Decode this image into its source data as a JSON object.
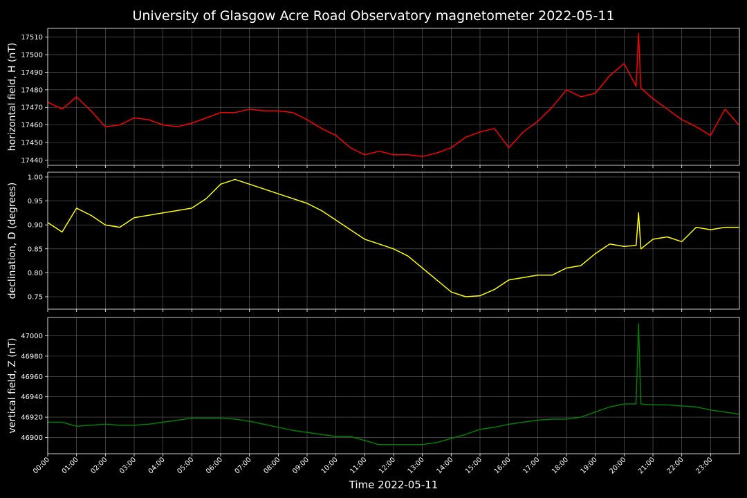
{
  "title": "University of Glasgow Acre Road Observatory magnetometer 2022-05-11",
  "chart_data": [
    {
      "type": "line",
      "ylabel": "horizontal field, H (nT)",
      "color": "#ff0000",
      "grid": true,
      "x": [
        "00:00",
        "00:30",
        "01:00",
        "01:30",
        "02:00",
        "02:30",
        "03:00",
        "03:30",
        "04:00",
        "04:30",
        "05:00",
        "05:30",
        "06:00",
        "06:30",
        "07:00",
        "07:30",
        "08:00",
        "08:30",
        "09:00",
        "09:30",
        "10:00",
        "10:30",
        "11:00",
        "11:30",
        "12:00",
        "12:30",
        "13:00",
        "13:30",
        "14:00",
        "14:30",
        "15:00",
        "15:30",
        "16:00",
        "16:30",
        "17:00",
        "17:30",
        "18:00",
        "18:30",
        "19:00",
        "19:30",
        "20:00",
        "20:25",
        "20:30",
        "20:35",
        "21:00",
        "21:30",
        "22:00",
        "22:30",
        "23:00",
        "23:30",
        "23:59"
      ],
      "values": [
        17473,
        17469,
        17476,
        17468,
        17459,
        17460,
        17464,
        17463,
        17460,
        17459,
        17461,
        17464,
        17467,
        17467,
        17469,
        17468,
        17468,
        17467,
        17463,
        17458,
        17454,
        17447,
        17443,
        17445,
        17443,
        17443,
        17442,
        17444,
        17447,
        17453,
        17456,
        17458,
        17447,
        17456,
        17462,
        17470,
        17480,
        17476,
        17478,
        17488,
        17495,
        17482,
        17512,
        17481,
        17475,
        17469,
        17463,
        17459,
        17454,
        17469,
        17460
      ],
      "xlim": [
        "00:00",
        "24:00"
      ],
      "ylim": [
        17437,
        17515
      ],
      "yticks": [
        17440,
        17450,
        17460,
        17470,
        17480,
        17490,
        17500,
        17510
      ]
    },
    {
      "type": "line",
      "ylabel": "declination, D (degrees)",
      "color": "#ffff00",
      "grid": true,
      "x": [
        "00:00",
        "00:30",
        "01:00",
        "01:30",
        "02:00",
        "02:30",
        "03:00",
        "03:30",
        "04:00",
        "04:30",
        "05:00",
        "05:30",
        "06:00",
        "06:30",
        "07:00",
        "07:30",
        "08:00",
        "08:30",
        "09:00",
        "09:30",
        "10:00",
        "10:30",
        "11:00",
        "11:30",
        "12:00",
        "12:30",
        "13:00",
        "13:30",
        "14:00",
        "14:30",
        "15:00",
        "15:30",
        "16:00",
        "16:30",
        "17:00",
        "17:30",
        "18:00",
        "18:30",
        "19:00",
        "19:30",
        "20:00",
        "20:25",
        "20:30",
        "20:35",
        "21:00",
        "21:30",
        "22:00",
        "22:30",
        "23:00",
        "23:30",
        "23:59"
      ],
      "values": [
        0.905,
        0.885,
        0.935,
        0.92,
        0.9,
        0.895,
        0.915,
        0.92,
        0.925,
        0.93,
        0.935,
        0.955,
        0.985,
        0.995,
        0.985,
        0.975,
        0.965,
        0.955,
        0.945,
        0.93,
        0.91,
        0.89,
        0.87,
        0.86,
        0.85,
        0.835,
        0.81,
        0.785,
        0.76,
        0.75,
        0.752,
        0.765,
        0.785,
        0.79,
        0.795,
        0.795,
        0.81,
        0.815,
        0.84,
        0.86,
        0.855,
        0.857,
        0.925,
        0.85,
        0.87,
        0.875,
        0.865,
        0.895,
        0.89,
        0.895,
        0.895
      ],
      "xlim": [
        "00:00",
        "24:00"
      ],
      "ylim": [
        0.724,
        1.01
      ],
      "yticks": [
        0.75,
        {
          "value": 0.8,
          "label": "0.80"
        },
        0.85,
        {
          "value": 0.9,
          "label": "0.90"
        },
        0.95,
        {
          "value": 1,
          "label": "1.00"
        }
      ]
    },
    {
      "type": "line",
      "ylabel": "vertical field, Z (nT)",
      "xlabel": "Time 2022-05-11",
      "color": "#008000",
      "grid": true,
      "x": [
        "00:00",
        "00:30",
        "01:00",
        "01:30",
        "02:00",
        "02:30",
        "03:00",
        "03:30",
        "04:00",
        "04:30",
        "05:00",
        "05:30",
        "06:00",
        "06:30",
        "07:00",
        "07:30",
        "08:00",
        "08:30",
        "09:00",
        "09:30",
        "10:00",
        "10:30",
        "11:00",
        "11:30",
        "12:00",
        "12:30",
        "13:00",
        "13:30",
        "14:00",
        "14:30",
        "15:00",
        "15:30",
        "16:00",
        "16:30",
        "17:00",
        "17:30",
        "18:00",
        "18:30",
        "19:00",
        "19:30",
        "20:00",
        "20:25",
        "20:30",
        "20:35",
        "21:00",
        "21:30",
        "22:00",
        "22:30",
        "23:00",
        "23:30",
        "23:59"
      ],
      "values": [
        46915,
        46915,
        46911,
        46912,
        46913,
        46912,
        46912,
        46913,
        46915,
        46917,
        46919,
        46919,
        46919,
        46918,
        46916,
        46913,
        46910,
        46907,
        46905,
        46903,
        46901,
        46901,
        46897,
        46893,
        46893,
        46893,
        46893,
        46895,
        46899,
        46903,
        46908,
        46910,
        46913,
        46915,
        46917,
        46918,
        46918,
        46920,
        46925,
        46930,
        46933,
        46933,
        47012,
        46933,
        46932,
        46932,
        46931,
        46930,
        46927,
        46925,
        46923
      ],
      "xlim": [
        "00:00",
        "24:00"
      ],
      "ylim": [
        46884,
        47018
      ],
      "yticks": [
        46900,
        46920,
        46940,
        46960,
        46980,
        47000
      ],
      "xticks": [
        "00:00",
        "01:00",
        "02:00",
        "03:00",
        "04:00",
        "05:00",
        "06:00",
        "07:00",
        "08:00",
        "09:00",
        "10:00",
        "11:00",
        "12:00",
        "13:00",
        "14:00",
        "15:00",
        "16:00",
        "17:00",
        "18:00",
        "19:00",
        "20:00",
        "21:00",
        "22:00",
        "23:00"
      ]
    }
  ]
}
